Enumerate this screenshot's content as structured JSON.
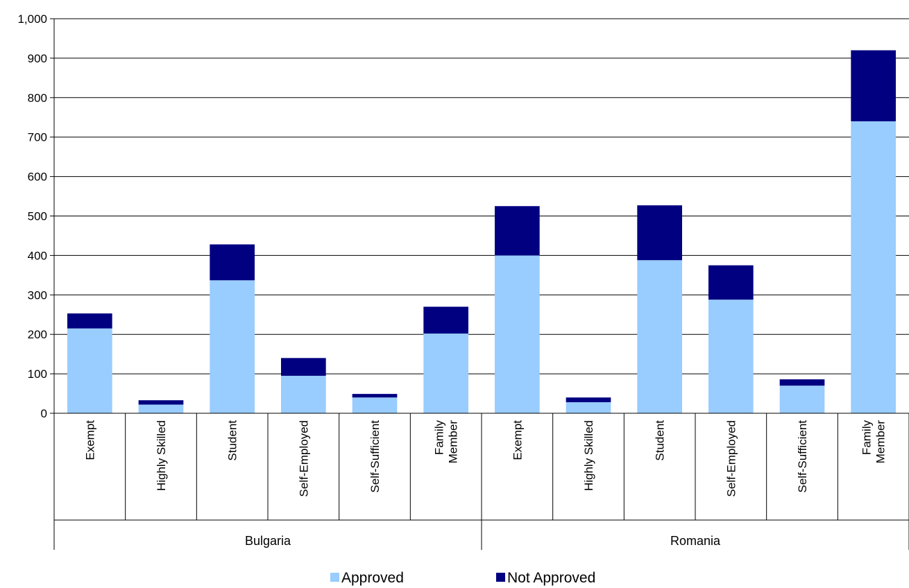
{
  "chart_data": {
    "type": "bar",
    "stacked": true,
    "groups": [
      {
        "name": "Bulgaria",
        "categories": [
          "Exempt",
          "Highly Skilled",
          "Student",
          "Self-Employed",
          "Self-Sufficient",
          "Family Member"
        ]
      },
      {
        "name": "Romania",
        "categories": [
          "Exempt",
          "Highly Skilled",
          "Student",
          "Self-Employed",
          "Self-Sufficient",
          "Family Member"
        ]
      }
    ],
    "series": [
      {
        "name": "Approved",
        "color": "#99ccff",
        "values": [
          215,
          22,
          337,
          95,
          40,
          202,
          400,
          28,
          388,
          288,
          70,
          740
        ]
      },
      {
        "name": "Not Approved",
        "color": "#000080",
        "values": [
          38,
          11,
          91,
          45,
          9,
          68,
          125,
          12,
          139,
          87,
          16,
          180
        ]
      }
    ],
    "ylim": [
      0,
      1000
    ],
    "yticks": [
      0,
      100,
      200,
      300,
      400,
      500,
      600,
      700,
      800,
      900,
      1000
    ],
    "ytick_labels": [
      "0",
      "100",
      "200",
      "300",
      "400",
      "500",
      "600",
      "700",
      "800",
      "900",
      "1,000"
    ],
    "grid": true,
    "legend_position": "bottom",
    "title": "",
    "xlabel": "",
    "ylabel": ""
  }
}
